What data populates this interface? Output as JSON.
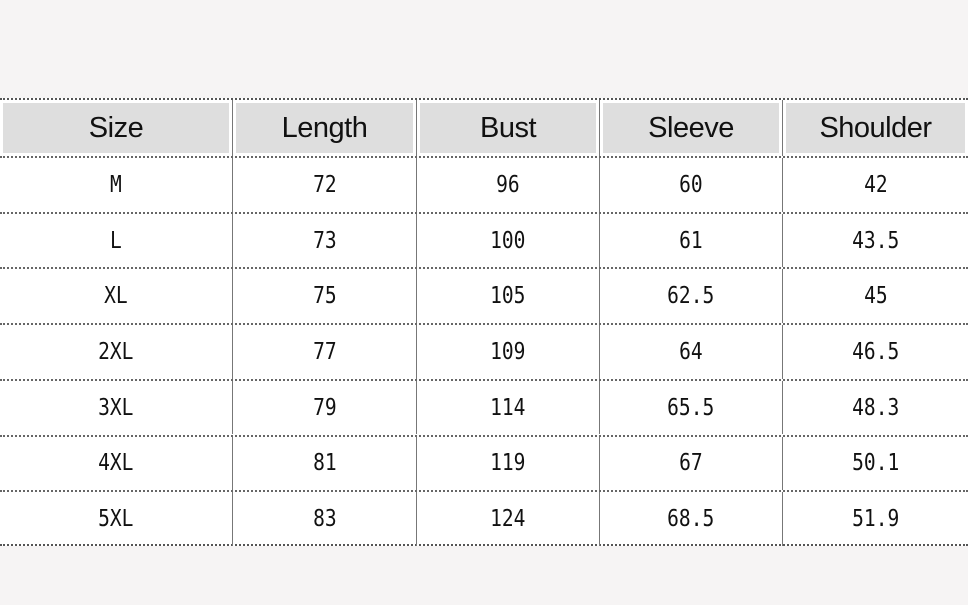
{
  "size_chart": {
    "headers": [
      "Size",
      "Length",
      "Bust",
      "Sleeve",
      "Shoulder"
    ],
    "rows": [
      [
        "M",
        "72",
        "96",
        "60",
        "42"
      ],
      [
        "L",
        "73",
        "100",
        "61",
        "43.5"
      ],
      [
        "XL",
        "75",
        "105",
        "62.5",
        "45"
      ],
      [
        "2XL",
        "77",
        "109",
        "64",
        "46.5"
      ],
      [
        "3XL",
        "79",
        "114",
        "65.5",
        "48.3"
      ],
      [
        "4XL",
        "81",
        "119",
        "67",
        "50.1"
      ],
      [
        "5XL",
        "83",
        "124",
        "68.5",
        "51.9"
      ]
    ]
  },
  "colors": {
    "header_bg": "#dedede",
    "border": "#666666",
    "text": "#111111"
  }
}
